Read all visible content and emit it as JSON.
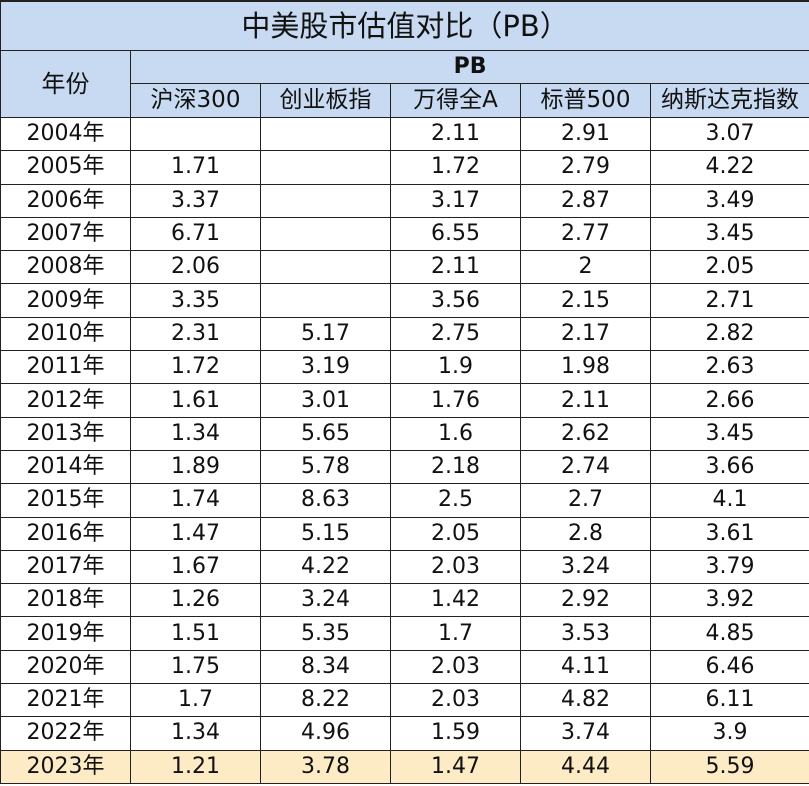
{
  "chart_data": {
    "type": "table",
    "title": "中美股市估值对比（PB）",
    "year_header": "年份",
    "group_header": "PB",
    "columns": [
      "沪深300",
      "创业板指",
      "万得全A",
      "标普500",
      "纳斯达克指数"
    ],
    "rows": [
      {
        "year": "2004年",
        "values": [
          "",
          "",
          "2.11",
          "2.91",
          "3.07"
        ]
      },
      {
        "year": "2005年",
        "values": [
          "1.71",
          "",
          "1.72",
          "2.79",
          "4.22"
        ]
      },
      {
        "year": "2006年",
        "values": [
          "3.37",
          "",
          "3.17",
          "2.87",
          "3.49"
        ]
      },
      {
        "year": "2007年",
        "values": [
          "6.71",
          "",
          "6.55",
          "2.77",
          "3.45"
        ]
      },
      {
        "year": "2008年",
        "values": [
          "2.06",
          "",
          "2.11",
          "2",
          "2.05"
        ]
      },
      {
        "year": "2009年",
        "values": [
          "3.35",
          "",
          "3.56",
          "2.15",
          "2.71"
        ]
      },
      {
        "year": "2010年",
        "values": [
          "2.31",
          "5.17",
          "2.75",
          "2.17",
          "2.82"
        ]
      },
      {
        "year": "2011年",
        "values": [
          "1.72",
          "3.19",
          "1.9",
          "1.98",
          "2.63"
        ]
      },
      {
        "year": "2012年",
        "values": [
          "1.61",
          "3.01",
          "1.76",
          "2.11",
          "2.66"
        ]
      },
      {
        "year": "2013年",
        "values": [
          "1.34",
          "5.65",
          "1.6",
          "2.62",
          "3.45"
        ]
      },
      {
        "year": "2014年",
        "values": [
          "1.89",
          "5.78",
          "2.18",
          "2.74",
          "3.66"
        ]
      },
      {
        "year": "2015年",
        "values": [
          "1.74",
          "8.63",
          "2.5",
          "2.7",
          "4.1"
        ]
      },
      {
        "year": "2016年",
        "values": [
          "1.47",
          "5.15",
          "2.05",
          "2.8",
          "3.61"
        ]
      },
      {
        "year": "2017年",
        "values": [
          "1.67",
          "4.22",
          "2.03",
          "3.24",
          "3.79"
        ]
      },
      {
        "year": "2018年",
        "values": [
          "1.26",
          "3.24",
          "1.42",
          "2.92",
          "3.92"
        ]
      },
      {
        "year": "2019年",
        "values": [
          "1.51",
          "5.35",
          "1.7",
          "3.53",
          "4.85"
        ]
      },
      {
        "year": "2020年",
        "values": [
          "1.75",
          "8.34",
          "2.03",
          "4.11",
          "6.46"
        ]
      },
      {
        "year": "2021年",
        "values": [
          "1.7",
          "8.22",
          "2.03",
          "4.82",
          "6.11"
        ]
      },
      {
        "year": "2022年",
        "values": [
          "1.34",
          "4.96",
          "1.59",
          "3.74",
          "3.9"
        ]
      },
      {
        "year": "2023年",
        "values": [
          "1.21",
          "3.78",
          "1.47",
          "4.44",
          "5.59"
        ]
      }
    ],
    "highlight_row": "2023年",
    "colors": {
      "header_bg": "#c8daf1",
      "highlight_bg": "#fcebc4",
      "border": "#222222"
    }
  }
}
